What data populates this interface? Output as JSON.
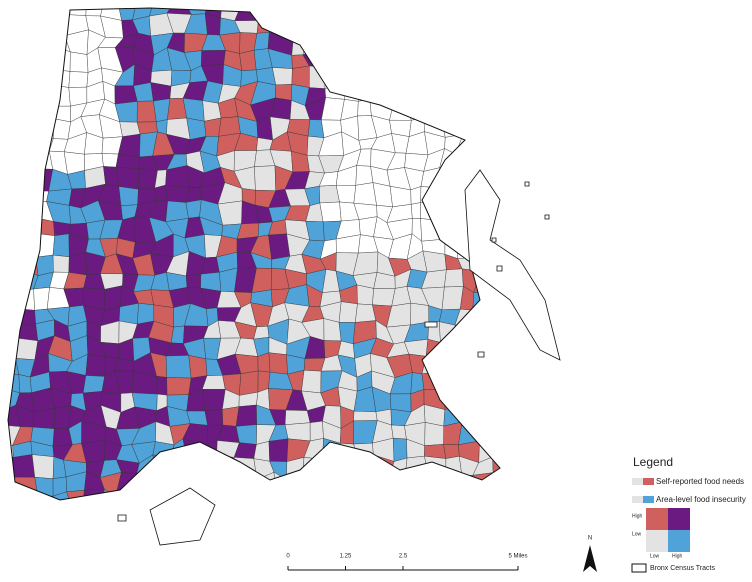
{
  "legend": {
    "title": "Legend",
    "items": [
      {
        "label": "Self-reported food needs",
        "colors": [
          "#e3e3e3",
          "#d0605e"
        ]
      },
      {
        "label": "Area-level food insecurity",
        "colors": [
          "#e3e3e3",
          "#4fa3d9"
        ]
      }
    ],
    "matrix": {
      "y_labels": [
        "High",
        "Low"
      ],
      "x_labels": [
        "Low",
        "High"
      ],
      "colors": [
        [
          "#d0605e",
          "#6a1a80"
        ],
        [
          "#e3e3e3",
          "#4fa3d9"
        ]
      ]
    },
    "outline_label": "Bronx Census Tracts"
  },
  "scale_bar": {
    "ticks": [
      0,
      1.25,
      2.5,
      {
        "value": 5,
        "label": "5 Miles"
      }
    ]
  },
  "north": "N"
}
